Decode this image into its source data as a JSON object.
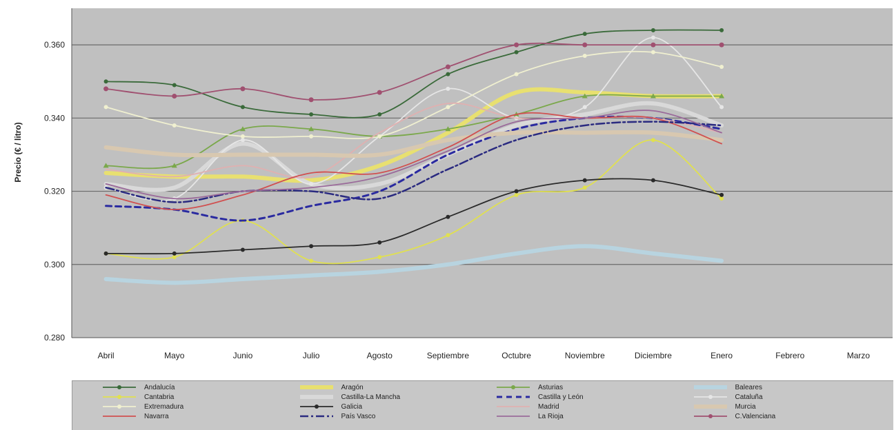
{
  "chart_data": {
    "type": "line",
    "ylabel": "Precio (€ / litro)",
    "xlabel": "",
    "ylim": [
      0.28,
      0.37
    ],
    "yticks": [
      "0.280",
      "0.300",
      "0.320",
      "0.340",
      "0.360"
    ],
    "ytick_values": [
      0.28,
      0.3,
      0.32,
      0.34,
      0.36
    ],
    "categories": [
      "Abril",
      "Mayo",
      "Junio",
      "Julio",
      "Agosto",
      "Septiembre",
      "Octubre",
      "Noviembre",
      "Diciembre",
      "Enero",
      "Febrero",
      "Marzo"
    ],
    "grid": true,
    "legend_position": "bottom",
    "series": [
      {
        "name": "Andalucía",
        "color": "#3a6a3a",
        "style": "solid",
        "marker": "dot",
        "values": [
          0.35,
          0.349,
          0.343,
          0.341,
          0.341,
          0.352,
          0.358,
          0.363,
          0.364,
          0.364,
          null,
          null
        ]
      },
      {
        "name": "Aragón",
        "color": "#e8e070",
        "style": "thick",
        "marker": "none",
        "values": [
          0.325,
          0.324,
          0.324,
          0.323,
          0.327,
          0.336,
          0.347,
          0.347,
          0.346,
          0.346,
          null,
          null
        ]
      },
      {
        "name": "Asturias",
        "color": "#7aa84a",
        "style": "solid",
        "marker": "triangle",
        "values": [
          0.327,
          0.327,
          0.337,
          0.337,
          0.335,
          0.337,
          0.341,
          0.346,
          0.346,
          0.346,
          null,
          null
        ]
      },
      {
        "name": "Baleares",
        "color": "#b8d4e0",
        "style": "thick",
        "marker": "none",
        "values": [
          0.296,
          0.295,
          0.296,
          0.297,
          0.298,
          0.3,
          0.303,
          0.305,
          0.303,
          0.301,
          null,
          null
        ]
      },
      {
        "name": "Cantabria",
        "color": "#e0e050",
        "style": "solid",
        "marker": "dot",
        "values": [
          0.303,
          0.302,
          0.312,
          0.301,
          0.302,
          0.308,
          0.319,
          0.321,
          0.334,
          0.318,
          null,
          null
        ]
      },
      {
        "name": "Castilla-La Mancha",
        "color": "#d9d9d9",
        "style": "thick",
        "marker": "none",
        "values": [
          0.322,
          0.321,
          0.333,
          0.322,
          0.322,
          0.33,
          0.338,
          0.341,
          0.344,
          0.338,
          null,
          null
        ]
      },
      {
        "name": "Castilla y León",
        "color": "#2a2aa0",
        "style": "dashed",
        "marker": "none",
        "values": [
          0.316,
          0.315,
          0.312,
          0.316,
          0.32,
          0.33,
          0.337,
          0.34,
          0.34,
          0.337,
          null,
          null
        ]
      },
      {
        "name": "Cataluña",
        "color": "#e6e6e6",
        "style": "solid",
        "marker": "dot",
        "values": [
          0.321,
          0.318,
          0.334,
          0.322,
          0.335,
          0.348,
          0.34,
          0.343,
          0.362,
          0.343,
          null,
          null
        ]
      },
      {
        "name": "Extremadura",
        "color": "#f0f0d0",
        "style": "solid",
        "marker": "dot",
        "values": [
          0.343,
          0.338,
          0.335,
          0.335,
          0.335,
          0.343,
          0.352,
          0.357,
          0.358,
          0.354,
          null,
          null
        ]
      },
      {
        "name": "Galicia",
        "color": "#2a2a2a",
        "style": "solid",
        "marker": "dot",
        "values": [
          0.303,
          0.303,
          0.304,
          0.305,
          0.306,
          0.313,
          0.32,
          0.323,
          0.323,
          0.319,
          null,
          null
        ]
      },
      {
        "name": "Madrid",
        "color": "#e0b0b0",
        "style": "solid",
        "marker": "none",
        "values": [
          0.326,
          0.324,
          0.327,
          0.324,
          0.336,
          0.344,
          0.34,
          0.34,
          0.34,
          0.336,
          null,
          null
        ]
      },
      {
        "name": "Murcia",
        "color": "#d8c8b0",
        "style": "thick",
        "marker": "none",
        "values": [
          0.332,
          0.33,
          0.33,
          0.33,
          0.33,
          0.334,
          0.336,
          0.336,
          0.336,
          0.334,
          null,
          null
        ]
      },
      {
        "name": "Navarra",
        "color": "#d05050",
        "style": "solid",
        "marker": "none",
        "values": [
          0.319,
          0.315,
          0.319,
          0.325,
          0.325,
          0.332,
          0.341,
          0.34,
          0.34,
          0.333,
          null,
          null
        ]
      },
      {
        "name": "País Vasco",
        "color": "#2a2a80",
        "style": "dashdot",
        "marker": "none",
        "values": [
          0.321,
          0.317,
          0.32,
          0.32,
          0.318,
          0.326,
          0.334,
          0.338,
          0.339,
          0.338,
          null,
          null
        ]
      },
      {
        "name": "La Rioja",
        "color": "#9a6a9a",
        "style": "solid",
        "marker": "none",
        "values": [
          0.322,
          0.318,
          0.32,
          0.321,
          0.324,
          0.331,
          0.339,
          0.34,
          0.342,
          0.336,
          null,
          null
        ]
      },
      {
        "name": "C.Valenciana",
        "color": "#a05070",
        "style": "solid",
        "marker": "star",
        "values": [
          0.348,
          0.346,
          0.348,
          0.345,
          0.347,
          0.354,
          0.36,
          0.36,
          0.36,
          0.36,
          null,
          null
        ]
      }
    ]
  }
}
